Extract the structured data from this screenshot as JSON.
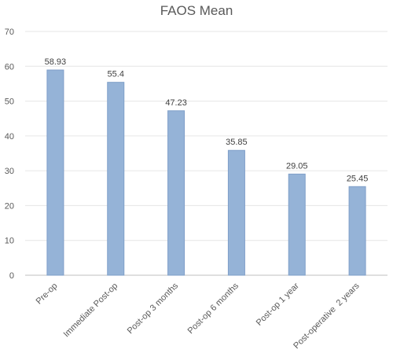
{
  "chart_data": {
    "type": "bar",
    "title": "FAOS Mean",
    "xlabel": "",
    "ylabel": "",
    "categories": [
      "Pre-op",
      "Immediate Post-op",
      "Post-op 3 months",
      "Post-op 6 months",
      "Post-op 1 year",
      "Post-operative  2 years"
    ],
    "values": [
      58.93,
      55.4,
      47.23,
      35.85,
      29.05,
      25.45
    ],
    "data_labels": [
      "58.93",
      "55.4",
      "47.23",
      "35.85",
      "29.05",
      "25.45"
    ],
    "ylim": [
      0,
      70
    ],
    "yticks": [
      "0",
      "10",
      "20",
      "30",
      "40",
      "50",
      "60",
      "70"
    ],
    "grid": true,
    "legend": "none",
    "colors": {
      "bar_fill": "#95b3d7",
      "bar_stroke": "#7f9fc9",
      "grid": "#e6e6e6",
      "text": "#595959"
    }
  }
}
